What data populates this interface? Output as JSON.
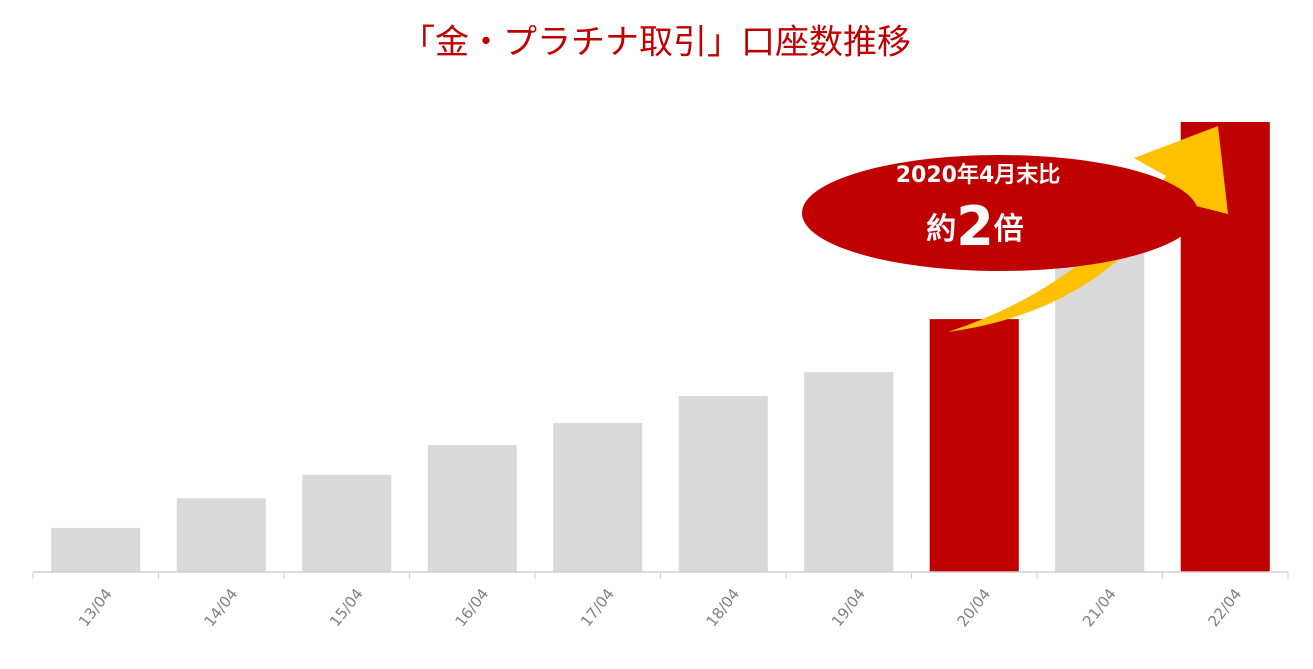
{
  "chart_data": {
    "type": "bar",
    "title": "「金・プラチナ取引」口座数推移",
    "categories": [
      "13/04",
      "14/04",
      "15/04",
      "16/04",
      "17/04",
      "18/04",
      "19/04",
      "20/04",
      "21/04",
      "22/04"
    ],
    "values": [
      9.8,
      16.4,
      21.6,
      28.2,
      33.1,
      39.1,
      44.4,
      56.2,
      76,
      100
    ],
    "colors": [
      "#d9d9d9",
      "#d9d9d9",
      "#d9d9d9",
      "#d9d9d9",
      "#d9d9d9",
      "#d9d9d9",
      "#d9d9d9",
      "#c00000",
      "#d9d9d9",
      "#c00000"
    ],
    "ylim": [
      0,
      100
    ],
    "grid": false,
    "annotation": {
      "text": "2020年4月末比",
      "emphasis": [
        "約",
        "2",
        "倍"
      ]
    }
  }
}
